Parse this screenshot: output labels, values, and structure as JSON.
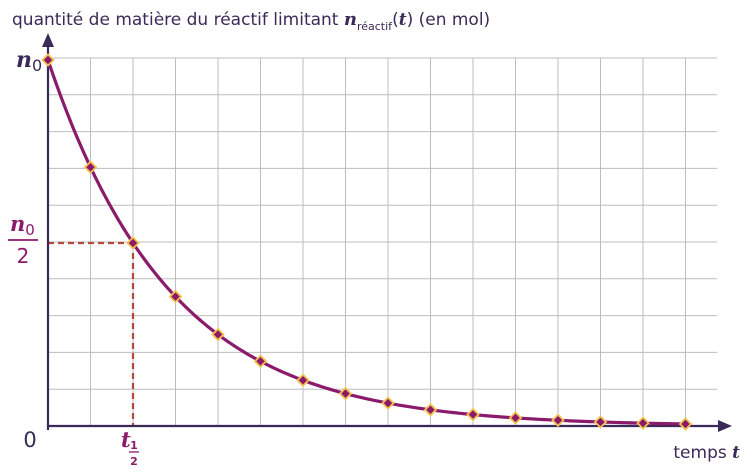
{
  "chart_data": {
    "type": "line",
    "title": {
      "prefix": "quantité de matière du réactif limitant ",
      "symbol": "n",
      "subscript": "réactif",
      "arg_open": "(",
      "arg_var": "t",
      "arg_close": ")",
      "suffix": " (en mol)"
    },
    "x_axis": {
      "label_text": "temps",
      "label_var": "t"
    },
    "y_axis": {
      "top_label": {
        "symbol": "n",
        "sub": "0"
      },
      "half_label": {
        "numerator_symbol": "n",
        "numerator_sub": "0",
        "denominator": "2"
      }
    },
    "origin_label": "0",
    "half_life_label": {
      "symbol": "t",
      "frac_num": "1",
      "frac_den": "2"
    },
    "curve": "exponential decay",
    "x_unit": "half-life t½",
    "y_unit": "fraction of n0",
    "xlim": [
      0,
      8
    ],
    "ylim": [
      0,
      1
    ],
    "grid": true,
    "points": [
      {
        "x": 0.0,
        "y": 1.0
      },
      {
        "x": 0.5,
        "y": 0.7071
      },
      {
        "x": 1.0,
        "y": 0.5
      },
      {
        "x": 1.5,
        "y": 0.3536
      },
      {
        "x": 2.0,
        "y": 0.25
      },
      {
        "x": 2.5,
        "y": 0.1768
      },
      {
        "x": 3.0,
        "y": 0.125
      },
      {
        "x": 3.5,
        "y": 0.0884
      },
      {
        "x": 4.0,
        "y": 0.0625
      },
      {
        "x": 4.5,
        "y": 0.0442
      },
      {
        "x": 5.0,
        "y": 0.0313
      },
      {
        "x": 5.5,
        "y": 0.0221
      },
      {
        "x": 6.0,
        "y": 0.0156
      },
      {
        "x": 6.5,
        "y": 0.011
      },
      {
        "x": 7.0,
        "y": 0.0078
      },
      {
        "x": 7.5,
        "y": 0.0055
      }
    ],
    "colors": {
      "curve": "#8b1a6b",
      "marker_fill": "#8b1a6b",
      "marker_stroke": "#f2c14e",
      "guide": "#b5473c",
      "grid": "#bdbdbd",
      "axis": "#3a2a57",
      "label": "#8b1a6b",
      "text": "#3a2a57"
    }
  }
}
